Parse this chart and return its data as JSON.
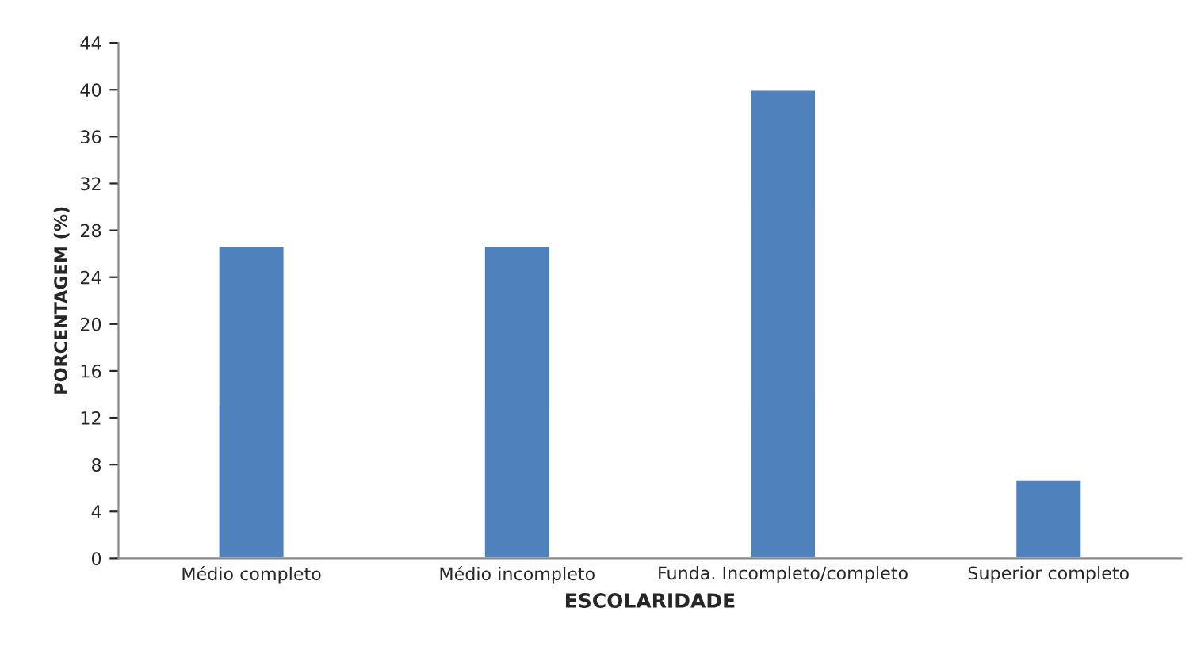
{
  "chart_data": {
    "type": "bar",
    "xlabel": "ESCOLARIDADE",
    "ylabel": "PORCENTAGEM (%)",
    "categories": [
      "Médio completo",
      "Médio incompleto",
      "Funda. Incompleto/completo",
      "Superior completo"
    ],
    "values": [
      26.7,
      26.7,
      40,
      6.7
    ],
    "color": "#4f81bd",
    "ylim": [
      0,
      44
    ],
    "yticks": [
      0,
      4,
      8,
      12,
      16,
      20,
      24,
      28,
      32,
      36,
      40,
      44
    ],
    "grid": false,
    "legend": false
  }
}
